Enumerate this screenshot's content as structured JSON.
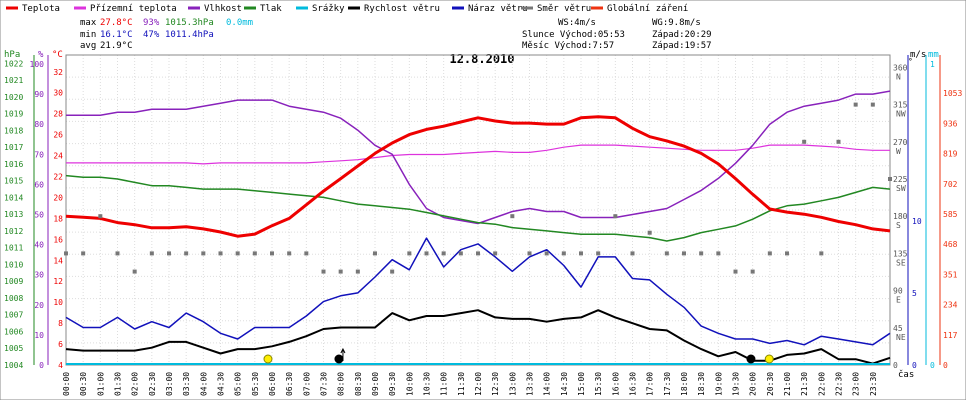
{
  "chart_data": {
    "type": "line",
    "title": "12.8.2010",
    "legend": [
      {
        "name": "Teplota",
        "color": "#ee0000"
      },
      {
        "name": "Přízemní teplota",
        "color": "#dd33dd"
      },
      {
        "name": "Vlhkost",
        "color": "#8822bb"
      },
      {
        "name": "Tlak",
        "color": "#228822"
      },
      {
        "name": "Srážky",
        "color": "#00bbdd"
      },
      {
        "name": "Rychlost větru",
        "color": "#000000"
      },
      {
        "name": "Náraz větru",
        "color": "#1111bb"
      },
      {
        "name": "Směr větru",
        "color": "#777777"
      },
      {
        "name": "Globální záření",
        "color": "#ee3311"
      }
    ],
    "stats": {
      "max_label": "max",
      "max_temp": "27.8°C",
      "max_hum": "93%",
      "max_press": "1015.3hPa",
      "rain": "0.0mm",
      "min_label": "min",
      "min_temp": "16.1°C",
      "min_hum": "47%",
      "min_press": "1011.4hPa",
      "avg_label": "avg",
      "avg_temp": "21.9°C"
    },
    "wind_info": {
      "ws": "WS:4m/s",
      "wg": "WG:9.8m/s"
    },
    "sun": {
      "sunrise": "Slunce Východ:05:53",
      "sunset": "Západ:20:29"
    },
    "moon": {
      "moonrise": "Měsíc Východ:7:57",
      "moonset": "Západ:19:57"
    },
    "axes": {
      "hpa_unit": "hPa",
      "pct_unit": "%",
      "temp_unit": "°C",
      "ms_unit": "m/s",
      "deg_unit": "°",
      "mm_unit": "mm",
      "wm_unit": "W/m²",
      "x_unit": "čas",
      "hpa_ticks": [
        "1004",
        "1005",
        "1006",
        "1007",
        "1008",
        "1009",
        "1010",
        "1011",
        "1012",
        "1013",
        "1014",
        "1015",
        "1016",
        "1017",
        "1018",
        "1019",
        "1020",
        "1021",
        "1022"
      ],
      "pct_ticks": [
        "0",
        "10",
        "20",
        "30",
        "40",
        "50",
        "60",
        "70",
        "80",
        "90",
        "100"
      ],
      "temp_ticks": [
        "4",
        "6",
        "8",
        "10",
        "12",
        "14",
        "16",
        "18",
        "20",
        "22",
        "24",
        "26",
        "28",
        "30",
        "32"
      ],
      "ms_ticks": [
        "0",
        "5",
        "10"
      ],
      "deg_ticks": [
        {
          "v": "360",
          "d": "N"
        },
        {
          "v": "315",
          "d": "NW"
        },
        {
          "v": "270",
          "d": "W"
        },
        {
          "v": "225",
          "d": "SW"
        },
        {
          "v": "180",
          "d": "S"
        },
        {
          "v": "135",
          "d": "SE"
        },
        {
          "v": "90",
          "d": "E"
        },
        {
          "v": "45",
          "d": "NE"
        },
        {
          "v": "0",
          "d": ""
        }
      ],
      "mm_ticks": [
        "0",
        "1"
      ],
      "wm_ticks": [
        "0",
        "117",
        "234",
        "351",
        "468",
        "585",
        "702",
        "819",
        "936",
        "1053"
      ],
      "time_labels": [
        "00:00",
        "00:30",
        "01:00",
        "01:30",
        "02:00",
        "02:30",
        "03:00",
        "03:30",
        "04:00",
        "04:30",
        "05:00",
        "05:30",
        "06:00",
        "06:30",
        "07:00",
        "07:30",
        "08:00",
        "08:30",
        "09:00",
        "09:30",
        "10:00",
        "10:30",
        "11:00",
        "11:30",
        "12:00",
        "12:30",
        "13:00",
        "13:30",
        "14:00",
        "14:30",
        "15:00",
        "15:30",
        "16:00",
        "16:30",
        "17:00",
        "17:30",
        "18:00",
        "18:30",
        "19:00",
        "19:30",
        "20:00",
        "20:30",
        "21:00",
        "21:30",
        "22:00",
        "22:30",
        "23:00",
        "23:30"
      ]
    },
    "x_hours": [
      0,
      0.5,
      1,
      1.5,
      2,
      2.5,
      3,
      3.5,
      4,
      4.5,
      5,
      5.5,
      6,
      6.5,
      7,
      7.5,
      8,
      8.5,
      9,
      9.5,
      10,
      10.5,
      11,
      11.5,
      12,
      12.5,
      13,
      13.5,
      14,
      14.5,
      15,
      15.5,
      16,
      16.5,
      17,
      17.5,
      18,
      18.5,
      19,
      19.5,
      20,
      20.5,
      21,
      21.5,
      22,
      22.5,
      23,
      23.5,
      24
    ],
    "series": [
      {
        "name": "Přízemní teplota",
        "unit": "°C",
        "values": [
          23.3,
          23.3,
          23.3,
          23.3,
          23.3,
          23.3,
          23.3,
          23.3,
          23.2,
          23.3,
          23.3,
          23.3,
          23.3,
          23.3,
          23.3,
          23.4,
          23.5,
          23.6,
          23.8,
          24.0,
          24.1,
          24.1,
          24.1,
          24.2,
          24.3,
          24.4,
          24.3,
          24.3,
          24.5,
          24.8,
          25.0,
          25.0,
          25.0,
          24.9,
          24.8,
          24.7,
          24.6,
          24.5,
          24.5,
          24.5,
          24.7,
          25.0,
          25.0,
          25.0,
          24.9,
          24.8,
          24.6,
          24.5,
          24.5
        ]
      },
      {
        "name": "Vlhkost",
        "unit": "%",
        "values": [
          83,
          83,
          83,
          84,
          84,
          85,
          85,
          85,
          86,
          87,
          88,
          88,
          88,
          86,
          85,
          84,
          82,
          78,
          73,
          70,
          60,
          52,
          49,
          48,
          47,
          49,
          51,
          52,
          51,
          51,
          49,
          49,
          49,
          50,
          51,
          52,
          55,
          58,
          62,
          67,
          73,
          80,
          84,
          86,
          87,
          88,
          90,
          90,
          91
        ]
      },
      {
        "name": "Tlak",
        "unit": "hPa",
        "values": [
          1015.3,
          1015.2,
          1015.2,
          1015.1,
          1014.9,
          1014.7,
          1014.7,
          1014.6,
          1014.5,
          1014.5,
          1014.5,
          1014.4,
          1014.3,
          1014.2,
          1014.1,
          1014.0,
          1013.8,
          1013.6,
          1013.5,
          1013.4,
          1013.3,
          1013.1,
          1012.9,
          1012.7,
          1012.5,
          1012.4,
          1012.2,
          1012.1,
          1012.0,
          1011.9,
          1011.8,
          1011.8,
          1011.8,
          1011.7,
          1011.6,
          1011.4,
          1011.6,
          1011.9,
          1012.1,
          1012.3,
          1012.7,
          1013.2,
          1013.5,
          1013.6,
          1013.8,
          1014.0,
          1014.3,
          1014.6,
          1014.5
        ]
      },
      {
        "name": "Teplota",
        "unit": "°C",
        "values": [
          18.2,
          18.1,
          18.0,
          17.6,
          17.4,
          17.1,
          17.1,
          17.2,
          17.0,
          16.7,
          16.3,
          16.5,
          17.3,
          18.0,
          19.3,
          20.6,
          21.8,
          23.0,
          24.2,
          25.2,
          26.0,
          26.5,
          26.8,
          27.2,
          27.6,
          27.3,
          27.1,
          27.1,
          27.0,
          27.0,
          27.6,
          27.7,
          27.6,
          26.6,
          25.8,
          25.4,
          24.9,
          24.2,
          23.2,
          21.8,
          20.3,
          18.9,
          18.6,
          18.4,
          18.1,
          17.7,
          17.4,
          17.0,
          16.8
        ]
      },
      {
        "name": "Rychlost větru",
        "unit": "m/s",
        "values": [
          1.1,
          1.0,
          1.0,
          1.0,
          1.0,
          1.2,
          1.6,
          1.6,
          1.2,
          0.8,
          1.1,
          1.1,
          1.3,
          1.6,
          2.0,
          2.5,
          2.6,
          2.6,
          2.6,
          3.6,
          3.1,
          3.4,
          3.4,
          3.6,
          3.8,
          3.3,
          3.2,
          3.2,
          3.0,
          3.2,
          3.3,
          3.8,
          3.3,
          2.9,
          2.5,
          2.4,
          1.7,
          1.1,
          0.6,
          0.9,
          0.3,
          0.3,
          0.7,
          0.8,
          1.1,
          0.4,
          0.4,
          0.1,
          0.5
        ]
      },
      {
        "name": "Náraz větru",
        "unit": "m/s",
        "values": [
          3.3,
          2.6,
          2.6,
          3.3,
          2.5,
          3.0,
          2.6,
          3.6,
          3.0,
          2.2,
          1.8,
          2.6,
          2.6,
          2.6,
          3.4,
          4.4,
          4.8,
          5.0,
          6.1,
          7.3,
          6.6,
          8.8,
          6.8,
          8.0,
          8.4,
          7.5,
          6.5,
          7.5,
          8.0,
          6.9,
          5.4,
          7.5,
          7.5,
          6.0,
          5.9,
          4.9,
          4.0,
          2.7,
          2.2,
          1.8,
          1.8,
          1.5,
          1.7,
          1.4,
          2.0,
          1.8,
          1.6,
          1.4,
          2.2
        ]
      },
      {
        "name": "Směr větru",
        "unit": "°",
        "values": [
          135,
          135,
          180,
          135,
          113,
          135,
          135,
          135,
          135,
          135,
          135,
          135,
          135,
          135,
          135,
          113,
          113,
          113,
          135,
          113,
          135,
          135,
          135,
          135,
          135,
          135,
          180,
          135,
          135,
          135,
          135,
          135,
          180,
          135,
          160,
          135,
          135,
          135,
          135,
          113,
          113,
          135,
          135,
          270,
          135,
          270,
          315,
          315,
          225
        ]
      },
      {
        "name": "Globální záření",
        "unit": "W/m²",
        "values": []
      }
    ],
    "markers": [
      {
        "name": "sunrise",
        "hour": 5.883
      },
      {
        "name": "moonrise",
        "hour": 7.95
      },
      {
        "name": "moonset",
        "hour": 19.95
      },
      {
        "name": "sunset",
        "hour": 20.483
      }
    ]
  }
}
